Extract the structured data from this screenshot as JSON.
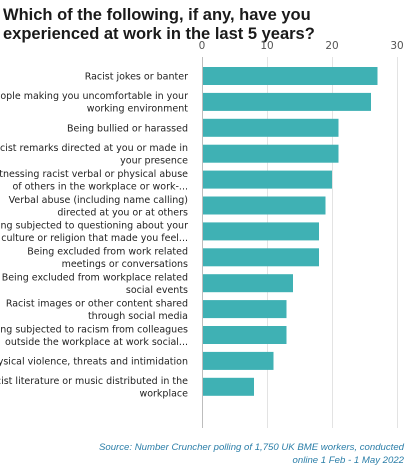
{
  "title_lines": [
    "Which of the following, if any, have you",
    "experienced at work in the last 5 years?"
  ],
  "source_lines": [
    "Source: Number Cruncher polling of 1,750 UK BME workers, conducted",
    "online 1 Feb - 1 May 2022"
  ],
  "colors": {
    "bar": "#3fb1b4"
  },
  "chart_data": {
    "type": "bar",
    "orientation": "horizontal",
    "xlim": [
      0,
      30
    ],
    "xticks": [
      0,
      10,
      20,
      30
    ],
    "grid": true,
    "x_axis_position": "top",
    "categories": [
      [
        "Racist jokes or banter"
      ],
      [
        "People making you uncomfortable in your",
        "working environment"
      ],
      [
        "Being bullied or harassed"
      ],
      [
        "Racist remarks directed at you or made in",
        "your presence"
      ],
      [
        "Witnessing racist verbal or physical abuse",
        "of others in the workplace or work-..."
      ],
      [
        "Verbal abuse (including name calling)",
        "directed at you or at others"
      ],
      [
        "Being subjected to questioning about your",
        "culture or religion that made you feel..."
      ],
      [
        "Being excluded from work related",
        "meetings or conversations"
      ],
      [
        "Being excluded from workplace related",
        "social events"
      ],
      [
        "Racist images or other content shared",
        "through social media"
      ],
      [
        "Being subjected to racism from colleagues",
        "outside the workplace at work social..."
      ],
      [
        "Physical violence, threats and intimidation"
      ],
      [
        "Racist literature or music distributed in the",
        "workplace"
      ]
    ],
    "values": [
      27,
      26,
      21,
      21,
      20,
      19,
      18,
      18,
      14,
      13,
      13,
      11,
      8
    ]
  }
}
